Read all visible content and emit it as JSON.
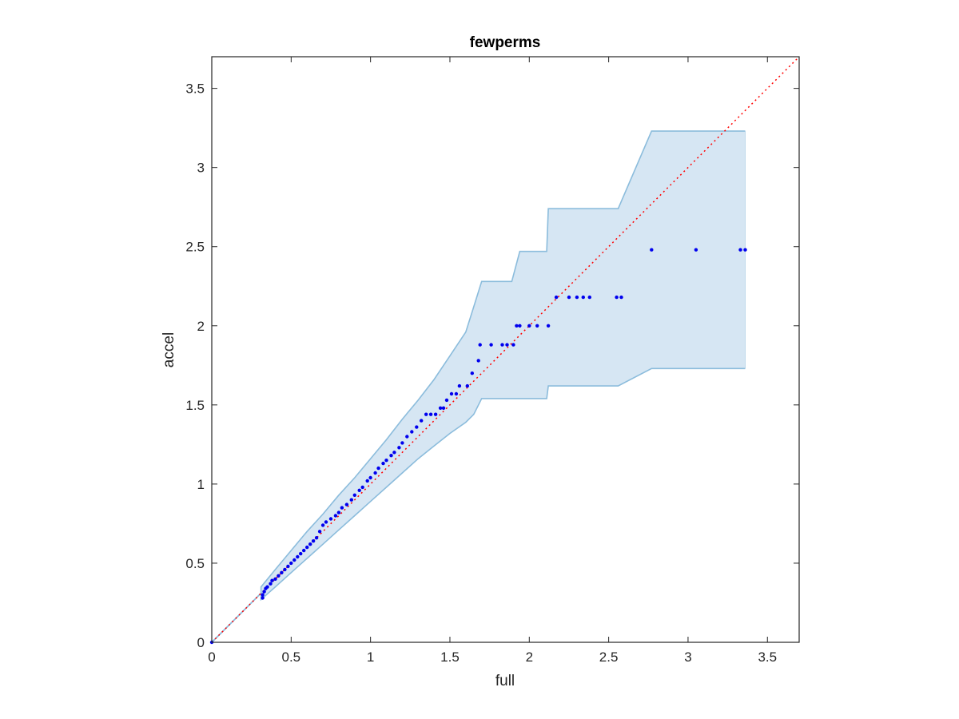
{
  "chart_data": {
    "type": "scatter",
    "title": "fewperms",
    "xlabel": "full",
    "ylabel": "accel",
    "xlim": [
      0,
      3.7
    ],
    "ylim": [
      0,
      3.7
    ],
    "xticks": [
      0,
      0.5,
      1,
      1.5,
      2,
      2.5,
      3,
      3.5
    ],
    "yticks": [
      0,
      0.5,
      1,
      1.5,
      2,
      2.5,
      3,
      3.5
    ],
    "xtick_labels": [
      "0",
      "0.5",
      "1",
      "1.5",
      "2",
      "2.5",
      "3",
      "3.5"
    ],
    "ytick_labels": [
      "0",
      "0.5",
      "1",
      "1.5",
      "2",
      "2.5",
      "3",
      "3.5"
    ],
    "grid": false,
    "box": true,
    "colors": {
      "band_fill": "#d6e6f3",
      "band_edge": "#8bbcdc",
      "points": "#0000ee",
      "reference": "#ff0000",
      "axes": "#262626"
    },
    "reference_line": {
      "x": [
        0,
        3.7
      ],
      "y": [
        0,
        3.7
      ],
      "style": "dotted"
    },
    "band": {
      "x": [
        0,
        0.31,
        0.31,
        0.4,
        0.5,
        0.6,
        0.7,
        0.8,
        0.9,
        1.0,
        1.1,
        1.2,
        1.3,
        1.4,
        1.5,
        1.6,
        1.65,
        1.7,
        1.89,
        1.94,
        2.11,
        2.12,
        2.56,
        2.77,
        3.36
      ],
      "upper": [
        0,
        0.31,
        0.35,
        0.46,
        0.58,
        0.7,
        0.81,
        0.93,
        1.04,
        1.16,
        1.28,
        1.41,
        1.53,
        1.66,
        1.81,
        1.96,
        2.12,
        2.28,
        2.28,
        2.47,
        2.47,
        2.74,
        2.74,
        3.23,
        3.23
      ],
      "lower": [
        0,
        0.31,
        0.27,
        0.35,
        0.44,
        0.53,
        0.62,
        0.71,
        0.8,
        0.89,
        0.98,
        1.07,
        1.16,
        1.24,
        1.32,
        1.39,
        1.44,
        1.54,
        1.54,
        1.54,
        1.54,
        1.62,
        1.62,
        1.73,
        1.73
      ]
    },
    "series": [
      {
        "x": [
          0,
          0.32,
          0.32,
          0.33,
          0.34,
          0.35,
          0.37,
          0.38,
          0.4,
          0.42,
          0.44,
          0.46,
          0.48,
          0.5,
          0.52,
          0.54,
          0.56,
          0.58,
          0.6,
          0.62,
          0.64,
          0.66,
          0.68,
          0.7,
          0.72,
          0.75,
          0.78,
          0.8,
          0.82,
          0.85,
          0.88,
          0.9,
          0.93,
          0.95,
          0.98,
          1.0,
          1.03,
          1.05,
          1.08,
          1.1,
          1.13,
          1.15,
          1.18,
          1.2,
          1.23,
          1.26,
          1.29,
          1.32,
          1.35,
          1.38,
          1.41,
          1.44,
          1.46,
          1.48,
          1.51,
          1.54,
          1.56,
          1.61,
          1.64,
          1.68,
          1.69,
          1.76,
          1.83,
          1.86,
          1.9,
          1.92,
          1.94,
          2.0,
          2.05,
          2.12,
          2.17,
          2.25,
          2.3,
          2.34,
          2.38,
          2.55,
          2.58,
          2.77,
          3.05,
          3.33,
          3.36
        ],
        "y": [
          0,
          0.28,
          0.3,
          0.32,
          0.34,
          0.35,
          0.37,
          0.39,
          0.4,
          0.42,
          0.44,
          0.46,
          0.48,
          0.5,
          0.52,
          0.54,
          0.56,
          0.58,
          0.6,
          0.62,
          0.64,
          0.66,
          0.7,
          0.74,
          0.76,
          0.78,
          0.8,
          0.82,
          0.85,
          0.87,
          0.9,
          0.93,
          0.96,
          0.98,
          1.02,
          1.04,
          1.07,
          1.1,
          1.13,
          1.15,
          1.18,
          1.2,
          1.23,
          1.26,
          1.3,
          1.33,
          1.36,
          1.4,
          1.44,
          1.44,
          1.44,
          1.48,
          1.48,
          1.53,
          1.57,
          1.57,
          1.62,
          1.62,
          1.7,
          1.78,
          1.88,
          1.88,
          1.88,
          1.88,
          1.88,
          2.0,
          2.0,
          2.0,
          2.0,
          2.0,
          2.18,
          2.18,
          2.18,
          2.18,
          2.18,
          2.18,
          2.18,
          2.48,
          2.48,
          2.48,
          2.48
        ]
      }
    ]
  }
}
